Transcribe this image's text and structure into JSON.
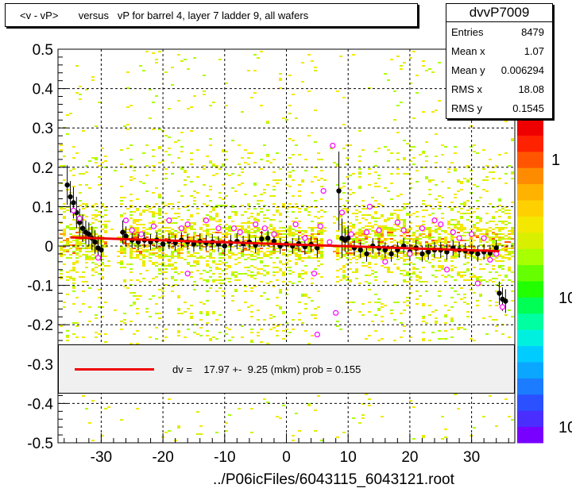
{
  "title": "<v - vP>       versus   vP for barrel 4, layer 7 ladder 9, all wafers",
  "stats": {
    "name": "dvvP7009",
    "rows": [
      {
        "label": "Entries",
        "value": "8479"
      },
      {
        "label": "Mean x",
        "value": "1.07"
      },
      {
        "label": "Mean y",
        "value": "0.006294"
      },
      {
        "label": "RMS x",
        "value": "18.08"
      },
      {
        "label": "RMS y",
        "value": "0.1545"
      }
    ]
  },
  "fit_legend": "dv =    17.97 +-  9.25 (mkm) prob = 0.155",
  "xlabel": "../P06icFiles/6043115_6043121.root",
  "colors": {
    "fit_line": "#ee0000",
    "profile_marker": "#000000",
    "open_marker": "#ff00ff",
    "palette": [
      "#7700ff",
      "#4a2dff",
      "#2a50ff",
      "#1b7cff",
      "#0aa6ff",
      "#00ccff",
      "#00f0e0",
      "#00ffa0",
      "#00ff55",
      "#22ff00",
      "#66ff00",
      "#a8ff00",
      "#d8f000",
      "#f4e800",
      "#ffd000",
      "#ffb200",
      "#ff8c00",
      "#ff5500",
      "#ff2200",
      "#ee0000"
    ]
  },
  "chart_data": {
    "type": "scatter",
    "xlim": [
      -37,
      37
    ],
    "ylim": [
      -0.5,
      0.5
    ],
    "x_ticks": [
      -30,
      -20,
      -10,
      0,
      10,
      20,
      30
    ],
    "y_ticks": [
      -0.5,
      -0.4,
      -0.3,
      -0.2,
      -0.1,
      0,
      0.1,
      0.2,
      0.3,
      0.4,
      0.5
    ],
    "x_tick_labels": [
      "-30",
      "-20",
      "-10",
      "0",
      "10",
      "20",
      "30"
    ],
    "y_tick_labels": [
      "-0.5",
      "-0.4",
      "-0.3",
      "-0.2",
      "-0.1",
      "0",
      "0.1",
      "0.2",
      "0.3",
      "0.4",
      "0.5"
    ],
    "grid": true,
    "colorbar_labels": [
      "1",
      "10",
      "10"
    ],
    "fit": {
      "x": [
        -35,
        34.5
      ],
      "y": [
        0.022,
        -0.013
      ]
    },
    "profile": [
      {
        "x": -35.5,
        "y": 0.155,
        "err": 0.05
      },
      {
        "x": -35,
        "y": 0.125,
        "err": 0.04
      },
      {
        "x": -34.5,
        "y": 0.11,
        "err": 0.04
      },
      {
        "x": -34,
        "y": 0.085,
        "err": 0.04
      },
      {
        "x": -33.5,
        "y": 0.06,
        "err": 0.035
      },
      {
        "x": -33,
        "y": 0.045,
        "err": 0.035
      },
      {
        "x": -32.5,
        "y": 0.035,
        "err": 0.03
      },
      {
        "x": -32,
        "y": 0.03,
        "err": 0.03
      },
      {
        "x": -31.5,
        "y": 0.02,
        "err": 0.03
      },
      {
        "x": -31,
        "y": 0.01,
        "err": 0.03
      },
      {
        "x": -30.5,
        "y": -0.005,
        "err": 0.03
      },
      {
        "x": -30,
        "y": -0.01,
        "err": 0.03
      },
      {
        "x": -26.5,
        "y": 0.035,
        "err": 0.03
      },
      {
        "x": -26,
        "y": 0.025,
        "err": 0.025
      },
      {
        "x": -25,
        "y": 0.015,
        "err": 0.02
      },
      {
        "x": -24,
        "y": 0.01,
        "err": 0.02
      },
      {
        "x": -23,
        "y": 0.015,
        "err": 0.02
      },
      {
        "x": -22,
        "y": 0.01,
        "err": 0.02
      },
      {
        "x": -21,
        "y": 0.015,
        "err": 0.02
      },
      {
        "x": -20,
        "y": 0.005,
        "err": 0.02
      },
      {
        "x": -19,
        "y": 0.012,
        "err": 0.02
      },
      {
        "x": -18,
        "y": 0.008,
        "err": 0.02
      },
      {
        "x": -17,
        "y": 0.015,
        "err": 0.02
      },
      {
        "x": -16,
        "y": 0.01,
        "err": 0.02
      },
      {
        "x": -15,
        "y": 0.005,
        "err": 0.02
      },
      {
        "x": -14,
        "y": 0.012,
        "err": 0.02
      },
      {
        "x": -13,
        "y": 0.008,
        "err": 0.02
      },
      {
        "x": -12,
        "y": 0.01,
        "err": 0.02
      },
      {
        "x": -11,
        "y": 0.005,
        "err": 0.02
      },
      {
        "x": -10,
        "y": 0.0,
        "err": 0.02
      },
      {
        "x": -9,
        "y": 0.008,
        "err": 0.02
      },
      {
        "x": -8,
        "y": 0.012,
        "err": 0.02
      },
      {
        "x": -7,
        "y": 0.006,
        "err": 0.02
      },
      {
        "x": -6,
        "y": 0.01,
        "err": 0.02
      },
      {
        "x": -5,
        "y": 0.002,
        "err": 0.02
      },
      {
        "x": -4,
        "y": 0.018,
        "err": 0.02
      },
      {
        "x": -3,
        "y": 0.02,
        "err": 0.02
      },
      {
        "x": -2,
        "y": 0.012,
        "err": 0.02
      },
      {
        "x": -1,
        "y": 0.0,
        "err": 0.02
      },
      {
        "x": 0,
        "y": 0.005,
        "err": 0.02
      },
      {
        "x": 1,
        "y": 0.0,
        "err": 0.02
      },
      {
        "x": 2,
        "y": 0.006,
        "err": 0.02
      },
      {
        "x": 3,
        "y": -0.002,
        "err": 0.02
      },
      {
        "x": 4,
        "y": 0.004,
        "err": 0.02
      },
      {
        "x": 5,
        "y": -0.005,
        "err": 0.025
      },
      {
        "x": 8.5,
        "y": 0.14,
        "err": 0.1
      },
      {
        "x": 9,
        "y": 0.02,
        "err": 0.05
      },
      {
        "x": 9.5,
        "y": 0.015,
        "err": 0.03
      },
      {
        "x": 10,
        "y": 0.02,
        "err": 0.03
      },
      {
        "x": 11,
        "y": -0.005,
        "err": 0.02
      },
      {
        "x": 12,
        "y": -0.01,
        "err": 0.02
      },
      {
        "x": 13,
        "y": -0.02,
        "err": 0.02
      },
      {
        "x": 14,
        "y": 0.0,
        "err": 0.02
      },
      {
        "x": 15,
        "y": -0.005,
        "err": 0.02
      },
      {
        "x": 16,
        "y": -0.01,
        "err": 0.02
      },
      {
        "x": 17,
        "y": -0.02,
        "err": 0.02
      },
      {
        "x": 18,
        "y": -0.01,
        "err": 0.02
      },
      {
        "x": 19,
        "y": 0.0,
        "err": 0.02
      },
      {
        "x": 20,
        "y": -0.015,
        "err": 0.02
      },
      {
        "x": 21,
        "y": -0.005,
        "err": 0.02
      },
      {
        "x": 22,
        "y": -0.02,
        "err": 0.02
      },
      {
        "x": 23,
        "y": -0.015,
        "err": 0.02
      },
      {
        "x": 24,
        "y": -0.01,
        "err": 0.02
      },
      {
        "x": 25,
        "y": -0.01,
        "err": 0.02
      },
      {
        "x": 26,
        "y": -0.015,
        "err": 0.02
      },
      {
        "x": 27,
        "y": -0.005,
        "err": 0.02
      },
      {
        "x": 28,
        "y": -0.01,
        "err": 0.02
      },
      {
        "x": 29,
        "y": -0.012,
        "err": 0.02
      },
      {
        "x": 30,
        "y": -0.015,
        "err": 0.02
      },
      {
        "x": 31,
        "y": -0.02,
        "err": 0.02
      },
      {
        "x": 32,
        "y": -0.015,
        "err": 0.02
      },
      {
        "x": 33,
        "y": -0.018,
        "err": 0.02
      },
      {
        "x": 34,
        "y": -0.005,
        "err": 0.02
      },
      {
        "x": 34.5,
        "y": -0.12,
        "err": 0.03
      },
      {
        "x": 35,
        "y": -0.135,
        "err": 0.03
      },
      {
        "x": 35.5,
        "y": -0.14,
        "err": 0.03
      }
    ],
    "open_points": [
      {
        "x": -34.5,
        "y": 0.09
      },
      {
        "x": -33.5,
        "y": 0.07
      },
      {
        "x": -30.5,
        "y": -0.03
      },
      {
        "x": -26,
        "y": 0.065
      },
      {
        "x": -25,
        "y": 0.04
      },
      {
        "x": -23.5,
        "y": 0.03
      },
      {
        "x": -21.5,
        "y": 0.05
      },
      {
        "x": -19,
        "y": 0.065
      },
      {
        "x": -17,
        "y": 0.045
      },
      {
        "x": -16,
        "y": 0.055
      },
      {
        "x": -13,
        "y": 0.065
      },
      {
        "x": -11,
        "y": 0.045
      },
      {
        "x": -8.5,
        "y": 0.045
      },
      {
        "x": -7.5,
        "y": 0.035
      },
      {
        "x": -5,
        "y": 0.055
      },
      {
        "x": -3.5,
        "y": 0.045
      },
      {
        "x": -2,
        "y": 0.03
      },
      {
        "x": -16,
        "y": -0.07
      },
      {
        "x": 1.5,
        "y": 0.055
      },
      {
        "x": 3,
        "y": 0.02
      },
      {
        "x": 4.5,
        "y": -0.07
      },
      {
        "x": 5,
        "y": -0.225
      },
      {
        "x": 5.5,
        "y": 0.05
      },
      {
        "x": 6,
        "y": 0.14
      },
      {
        "x": 7.5,
        "y": 0.255
      },
      {
        "x": 7,
        "y": 0.01
      },
      {
        "x": 8,
        "y": -0.17
      },
      {
        "x": 9,
        "y": 0.085
      },
      {
        "x": 10.5,
        "y": 0.03
      },
      {
        "x": 13,
        "y": 0.035
      },
      {
        "x": 13.5,
        "y": 0.1
      },
      {
        "x": 15,
        "y": 0.04
      },
      {
        "x": 16,
        "y": -0.04
      },
      {
        "x": 18,
        "y": 0.06
      },
      {
        "x": 19,
        "y": 0.04
      },
      {
        "x": 20,
        "y": -0.02
      },
      {
        "x": 22,
        "y": 0.045
      },
      {
        "x": 24,
        "y": 0.065
      },
      {
        "x": 25,
        "y": 0.055
      },
      {
        "x": 26,
        "y": -0.06
      },
      {
        "x": 27,
        "y": 0.035
      },
      {
        "x": 28,
        "y": 0.02
      },
      {
        "x": 30,
        "y": 0.03
      },
      {
        "x": 31,
        "y": -0.095
      },
      {
        "x": 32,
        "y": 0.02
      },
      {
        "x": 33,
        "y": -0.035
      },
      {
        "x": 34,
        "y": -0.02
      },
      {
        "x": 35,
        "y": -0.155
      }
    ]
  }
}
